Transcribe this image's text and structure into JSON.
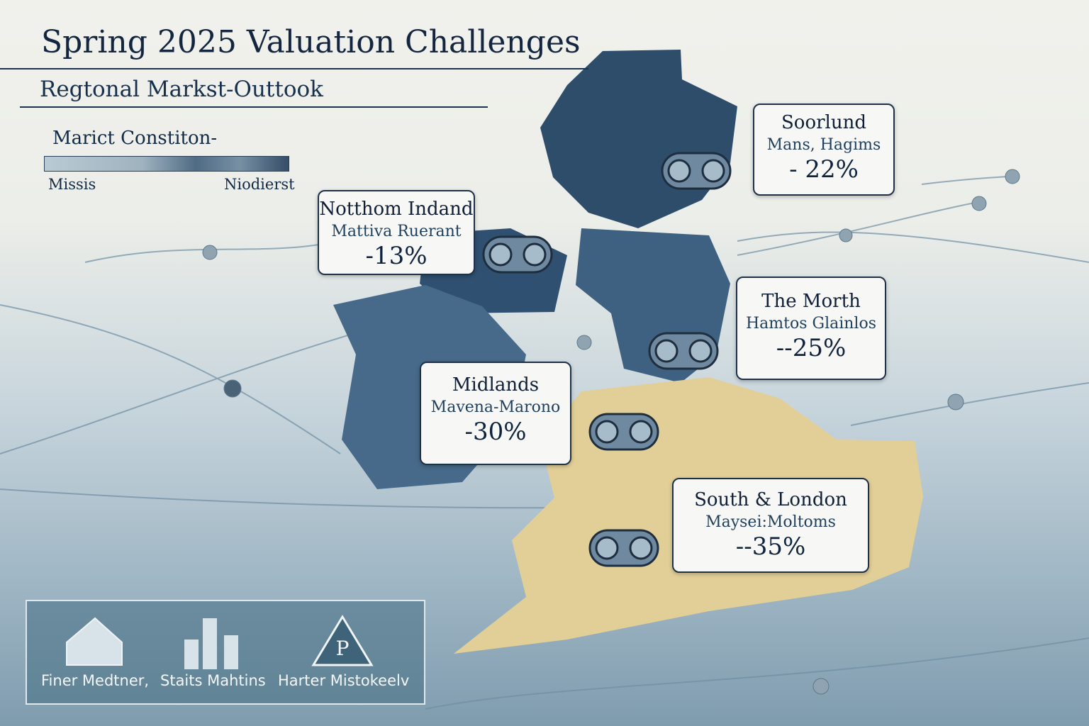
{
  "header": {
    "title": "Spring 2025 Valuation Challenges",
    "subtitle": "Regtonal Markst-Outtook"
  },
  "legend": {
    "title": "Marict Constiton-",
    "low_label": "Missis",
    "high_label": "Niodierst"
  },
  "colors": {
    "dark_region": "#2e4d6b",
    "mid_region": "#476a8a",
    "tan_region": "#e2cf97",
    "text": "#132a44"
  },
  "regions": [
    {
      "name": "Soorlund",
      "subtitle": "Mans, Hagims",
      "value": "- 22%",
      "icon": "binoculars-icon"
    },
    {
      "name": "Notthom Indand",
      "subtitle": "Mattiva Ruerant",
      "value": "-13%",
      "icon": "binoculars-icon"
    },
    {
      "name": "The Morth",
      "subtitle": "Hamtos Glainlos",
      "value": "--25%",
      "icon": "binoculars-icon"
    },
    {
      "name": "Midlands",
      "subtitle": "Mavena-Marono",
      "value": "-30%",
      "icon": "binoculars-icon"
    },
    {
      "name": "South  & London",
      "subtitle": "Maysei:Moltoms",
      "value": "--35%",
      "icon": "binoculars-icon"
    }
  ],
  "bottom_panel": {
    "items": [
      {
        "label": "Finer Medtner,",
        "icon": "house-icon"
      },
      {
        "label": "Staits Mahtins",
        "icon": "bar-chart-icon"
      },
      {
        "label": "Harter Mistokeelv",
        "icon": "warning-triangle-icon"
      }
    ]
  }
}
